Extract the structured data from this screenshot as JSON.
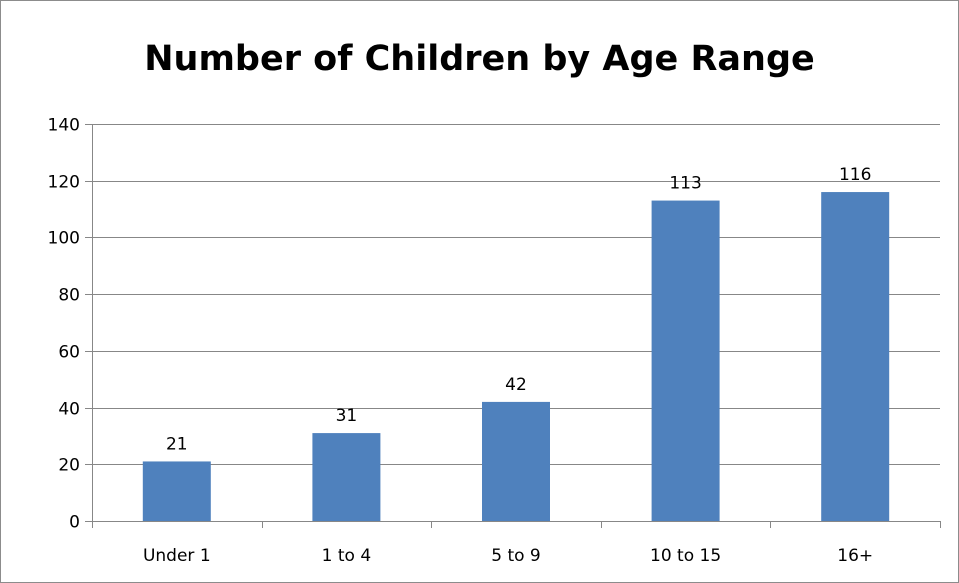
{
  "chart_data": {
    "type": "bar",
    "title": "Number of Children by Age Range",
    "xlabel": "",
    "ylabel": "",
    "categories": [
      "Under 1",
      "1 to 4",
      "5 to 9",
      "10 to 15",
      "16+"
    ],
    "values": [
      21,
      31,
      42,
      113,
      116
    ],
    "data_labels": [
      "21",
      "31",
      "42",
      "113",
      "116"
    ],
    "ylim": [
      0,
      140
    ],
    "yticks": [
      0,
      20,
      40,
      60,
      80,
      100,
      120,
      140
    ],
    "ytick_labels": [
      "0",
      "20",
      "40",
      "60",
      "80",
      "100",
      "120",
      "140"
    ],
    "grid": "horizontal",
    "legend": "none",
    "bar_color": "#4f81bd",
    "gridline_color": "#878787"
  }
}
